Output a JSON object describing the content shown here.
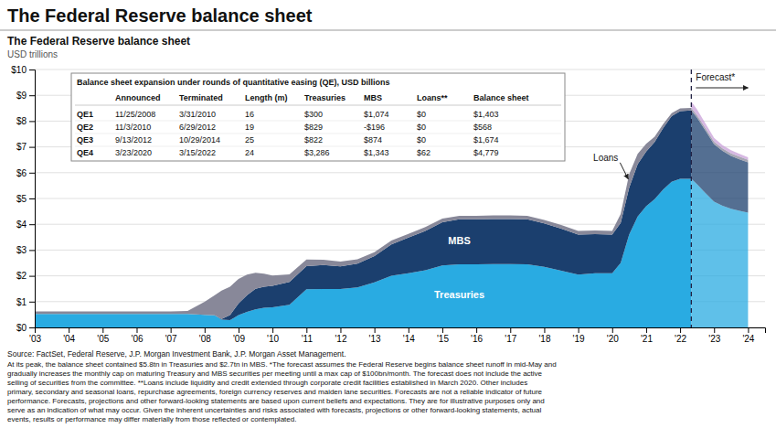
{
  "chart_data": {
    "type": "area",
    "stacked": true,
    "grid": true,
    "title": "The Federal Reserve balance sheet",
    "chart_title": "The Federal Reserve balance sheet",
    "subtitle": "USD trillions",
    "forecast_label": "Forecast*",
    "xlim": [
      2003,
      2024.5
    ],
    "xticks": [
      {
        "value": 2003,
        "label": "'03"
      },
      {
        "value": 2004,
        "label": "'04"
      },
      {
        "value": 2005,
        "label": "'05"
      },
      {
        "value": 2006,
        "label": "'06"
      },
      {
        "value": 2007,
        "label": "'07"
      },
      {
        "value": 2008,
        "label": "'08"
      },
      {
        "value": 2009,
        "label": "'09"
      },
      {
        "value": 2010,
        "label": "'10"
      },
      {
        "value": 2011,
        "label": "'11"
      },
      {
        "value": 2012,
        "label": "'12"
      },
      {
        "value": 2013,
        "label": "'13"
      },
      {
        "value": 2014,
        "label": "'14"
      },
      {
        "value": 2015,
        "label": "'15"
      },
      {
        "value": 2016,
        "label": "'16"
      },
      {
        "value": 2017,
        "label": "'17"
      },
      {
        "value": 2018,
        "label": "'18"
      },
      {
        "value": 2019,
        "label": "'19"
      },
      {
        "value": 2020,
        "label": "'20"
      },
      {
        "value": 2021,
        "label": "'21"
      },
      {
        "value": 2022,
        "label": "'22"
      },
      {
        "value": 2023,
        "label": "'23"
      },
      {
        "value": 2024,
        "label": "'24"
      }
    ],
    "ylim": [
      0,
      10
    ],
    "yticks": [
      {
        "value": 0,
        "label": "$0"
      },
      {
        "value": 1,
        "label": "$1"
      },
      {
        "value": 2,
        "label": "$2"
      },
      {
        "value": 3,
        "label": "$3"
      },
      {
        "value": 4,
        "label": "$4"
      },
      {
        "value": 5,
        "label": "$5"
      },
      {
        "value": 6,
        "label": "$6"
      },
      {
        "value": 7,
        "label": "$7"
      },
      {
        "value": 8,
        "label": "$8"
      },
      {
        "value": 9,
        "label": "$9"
      },
      {
        "value": 10,
        "label": "$10"
      }
    ],
    "series": [
      {
        "name": "Treasuries",
        "color": "#29ABE2",
        "x": [
          2003.0,
          2003.5,
          2004.0,
          2004.5,
          2005.0,
          2005.5,
          2006.0,
          2006.5,
          2007.0,
          2007.5,
          2008.0,
          2008.3,
          2008.5,
          2008.75,
          2009.0,
          2009.25,
          2009.5,
          2009.75,
          2010.0,
          2010.5,
          2011.0,
          2011.5,
          2012.0,
          2012.5,
          2013.0,
          2013.5,
          2014.0,
          2014.5,
          2015.0,
          2015.5,
          2016.0,
          2016.5,
          2017.0,
          2017.5,
          2018.0,
          2018.5,
          2019.0,
          2019.5,
          2020.0,
          2020.25,
          2020.5,
          2020.75,
          2021.0,
          2021.25,
          2021.5,
          2021.75,
          2022.0,
          2022.33
        ],
        "values": [
          0.52,
          0.52,
          0.52,
          0.52,
          0.52,
          0.52,
          0.52,
          0.52,
          0.52,
          0.52,
          0.49,
          0.47,
          0.3,
          0.28,
          0.48,
          0.6,
          0.7,
          0.76,
          0.78,
          0.88,
          1.48,
          1.49,
          1.49,
          1.55,
          1.75,
          2.0,
          2.1,
          2.22,
          2.4,
          2.45,
          2.45,
          2.46,
          2.46,
          2.45,
          2.35,
          2.2,
          2.05,
          2.1,
          2.1,
          2.5,
          3.6,
          4.3,
          4.7,
          4.97,
          5.35,
          5.65,
          5.76,
          5.76
        ]
      },
      {
        "name": "MBS",
        "color": "#1B3F6E",
        "x": [
          2003.0,
          2003.5,
          2004.0,
          2004.5,
          2005.0,
          2005.5,
          2006.0,
          2006.5,
          2007.0,
          2007.5,
          2008.0,
          2008.3,
          2008.5,
          2008.75,
          2009.0,
          2009.25,
          2009.5,
          2009.75,
          2010.0,
          2010.5,
          2011.0,
          2011.5,
          2012.0,
          2012.5,
          2013.0,
          2013.5,
          2014.0,
          2014.5,
          2015.0,
          2015.5,
          2016.0,
          2016.5,
          2017.0,
          2017.5,
          2018.0,
          2018.5,
          2019.0,
          2019.5,
          2020.0,
          2020.25,
          2020.5,
          2020.75,
          2021.0,
          2021.25,
          2021.5,
          2021.75,
          2022.0,
          2022.33
        ],
        "values": [
          0.0,
          0.0,
          0.0,
          0.0,
          0.0,
          0.0,
          0.0,
          0.0,
          0.0,
          0.0,
          0.0,
          0.0,
          0.03,
          0.2,
          0.45,
          0.65,
          0.8,
          0.82,
          0.83,
          0.88,
          0.9,
          0.93,
          0.88,
          0.92,
          1.02,
          1.22,
          1.38,
          1.52,
          1.68,
          1.74,
          1.74,
          1.74,
          1.74,
          1.74,
          1.68,
          1.63,
          1.55,
          1.52,
          1.5,
          1.55,
          1.82,
          2.03,
          2.12,
          2.22,
          2.38,
          2.54,
          2.63,
          2.65
        ]
      },
      {
        "name": "Loans",
        "color": "#888899",
        "x": [
          2003.0,
          2003.5,
          2004.0,
          2004.5,
          2005.0,
          2005.5,
          2006.0,
          2006.5,
          2007.0,
          2007.5,
          2008.0,
          2008.3,
          2008.5,
          2008.75,
          2009.0,
          2009.25,
          2009.5,
          2009.75,
          2010.0,
          2010.5,
          2011.0,
          2011.5,
          2012.0,
          2012.5,
          2013.0,
          2013.5,
          2014.0,
          2014.5,
          2015.0,
          2015.5,
          2016.0,
          2016.5,
          2017.0,
          2017.5,
          2018.0,
          2018.5,
          2019.0,
          2019.5,
          2020.0,
          2020.25,
          2020.5,
          2020.75,
          2021.0,
          2021.25,
          2021.5,
          2021.75,
          2022.0,
          2022.33
        ],
        "values": [
          0.1,
          0.1,
          0.1,
          0.1,
          0.1,
          0.1,
          0.1,
          0.1,
          0.1,
          0.12,
          0.5,
          0.78,
          1.1,
          1.1,
          0.95,
          0.8,
          0.62,
          0.5,
          0.4,
          0.3,
          0.25,
          0.2,
          0.18,
          0.17,
          0.15,
          0.15,
          0.15,
          0.15,
          0.14,
          0.14,
          0.14,
          0.14,
          0.14,
          0.14,
          0.14,
          0.14,
          0.14,
          0.14,
          0.14,
          0.35,
          0.52,
          0.4,
          0.3,
          0.2,
          0.15,
          0.12,
          0.1,
          0.1
        ]
      },
      {
        "color": "#29ABE2",
        "x": [
          2022.33,
          2022.5,
          2022.75,
          2023.0,
          2023.25,
          2023.5,
          2023.75,
          2024.0
        ],
        "values": [
          5.76,
          5.55,
          5.2,
          4.88,
          4.72,
          4.6,
          4.52,
          4.45
        ]
      },
      {
        "color": "#1B3F6E",
        "x": [
          2022.33,
          2022.5,
          2022.75,
          2023.0,
          2023.25,
          2023.5,
          2023.75,
          2024.0
        ],
        "values": [
          2.65,
          2.58,
          2.42,
          2.22,
          2.12,
          2.05,
          2.0,
          1.95
        ]
      },
      {
        "color": "#888899",
        "x": [
          2022.33,
          2022.5,
          2022.75,
          2023.0,
          2023.25,
          2023.5,
          2023.75,
          2024.0
        ],
        "values": [
          0.1,
          0.1,
          0.1,
          0.1,
          0.1,
          0.1,
          0.1,
          0.1
        ]
      },
      {
        "color": "#C8A0D8",
        "x": [
          2022.33,
          2022.5,
          2022.75,
          2023.0,
          2023.25,
          2023.5,
          2023.75,
          2024.0
        ],
        "values": [
          0.25,
          0.22,
          0.18,
          0.15,
          0.13,
          0.12,
          0.11,
          0.1
        ]
      }
    ],
    "table": {
      "title": "Balance sheet expansion under rounds of quantitative easing (QE), USD billions",
      "headers": [
        null,
        "Announced",
        "Terminated",
        "Length (m)",
        "Treasuries",
        "MBS",
        "Loans**",
        "Balance sheet"
      ],
      "rows": [
        [
          "QE1",
          "11/25/2008",
          "3/31/2010",
          "16",
          "$300",
          "$1,074",
          "$0",
          "$1,403"
        ],
        [
          "QE2",
          "11/3/2010",
          "6/29/2012",
          "19",
          "$829",
          "-$196",
          "$0",
          "$568"
        ],
        [
          "QE3",
          "9/13/2012",
          "10/29/2014",
          "25",
          "$822",
          "$874",
          "$0",
          "$1,674"
        ],
        [
          "QE4",
          "3/23/2020",
          "3/15/2022",
          "24",
          "$3,286",
          "$1,343",
          "$62",
          "$4,779"
        ]
      ]
    },
    "source": "Source: FactSet, Federal Reserve, J.P. Morgan Investment Bank, J.P. Morgan Asset Management.",
    "footnotes": [
      "At its peak, the balance sheet contained $5.8tn in Treasuries and $2.7tn in MBS. *The forecast assumes the Federal Reserve begins balance sheet runoff in mid-May and",
      "gradually increases the monthly cap on maturing Treasury and MBS securities per meeting until a max cap of $100bn/month. The forecast does not include the active",
      "selling of securities from the committee. **Loans include liquidity and credit extended through corporate credit facilities established in March 2020. Other includes",
      "primary, secondary and seasonal loans, repurchase agreements, foreign currency reserves and maiden lane securities. Forecasts are not a reliable indicator of future",
      "performance. Forecasts, projections and other forward-looking statements are based upon current beliefs and expectations. They are for illustrative purposes only and",
      "serve as an indication of what may occur. Given the inherent uncertainties and risks associated with forecasts, projections or other forward-looking statements, actual",
      "events, results or performance may differ materially from those reflected or contemplated."
    ]
  }
}
